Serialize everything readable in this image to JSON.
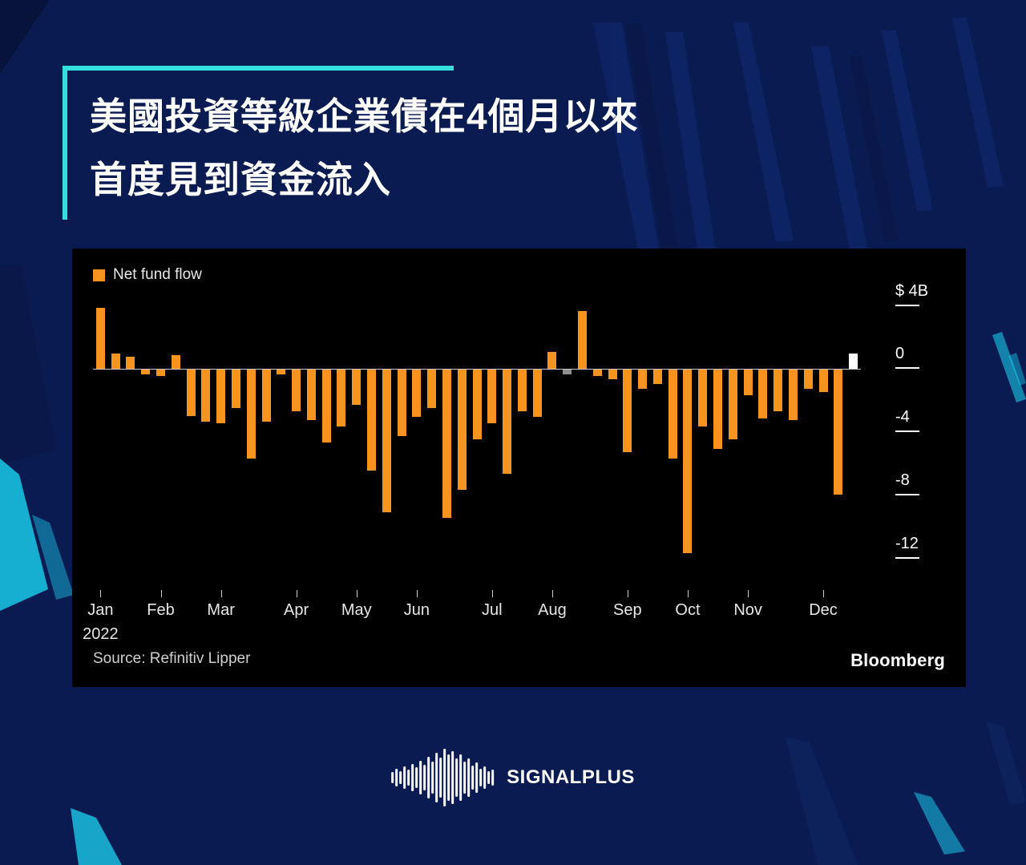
{
  "title": {
    "line1": "美國投資等級企業債在4個月以來",
    "line2": "首度見到資金流入"
  },
  "chart": {
    "legend_label": "Net fund flow",
    "source": "Source: Refinitiv Lipper",
    "brand": "Bloomberg",
    "colors": {
      "bar": "#f79420",
      "neutral_bar": "#8f8f8f",
      "highlight_bar": "#ffffff",
      "axis": "#ffffff",
      "panel_bg": "#000000",
      "page_bg": "#0a1b52",
      "accent_teal": "#35e0dc"
    }
  },
  "chart_data": {
    "type": "bar",
    "title": "Net fund flow",
    "unit": "$B",
    "x_months": [
      "Jan",
      "Feb",
      "Mar",
      "Apr",
      "May",
      "Jun",
      "Jul",
      "Aug",
      "Sep",
      "Oct",
      "Nov",
      "Dec"
    ],
    "year_label": "2022",
    "month_week_index": [
      0,
      4,
      8,
      13,
      17,
      21,
      26,
      30,
      35,
      39,
      43,
      48
    ],
    "values": [
      3.9,
      1.0,
      0.8,
      -0.3,
      -0.4,
      0.9,
      -2.9,
      -3.3,
      -3.4,
      -2.4,
      -5.6,
      -3.3,
      -0.3,
      -2.6,
      -3.2,
      -4.6,
      -3.6,
      -2.2,
      -6.4,
      -9.0,
      -4.2,
      -3.0,
      -2.4,
      -9.4,
      -7.6,
      -4.4,
      -3.4,
      -6.6,
      -2.6,
      -3.0,
      1.1,
      -0.3,
      3.7,
      -0.4,
      -0.6,
      -5.2,
      -1.2,
      -0.9,
      -5.6,
      -11.6,
      -3.6,
      -5.0,
      -4.4,
      -1.6,
      -3.1,
      -2.6,
      -3.2,
      -1.2,
      -1.4,
      -7.9,
      1.0
    ],
    "special_bars": [
      {
        "index": 31,
        "color": "#8f8f8f"
      },
      {
        "index": 50,
        "color": "#ffffff"
      }
    ],
    "y_ticks": [
      {
        "v": 4,
        "label": "$ 4B"
      },
      {
        "v": 0,
        "label": "0"
      },
      {
        "v": -4,
        "label": "-4"
      },
      {
        "v": -8,
        "label": "-8"
      },
      {
        "v": -12,
        "label": "-12"
      }
    ],
    "ylim": [
      -13.6,
      4.6
    ],
    "grid": false,
    "legend_position": "top-left"
  },
  "footer": {
    "brand": "SIGNALPLUS",
    "logo_icon": "waveform-icon"
  }
}
